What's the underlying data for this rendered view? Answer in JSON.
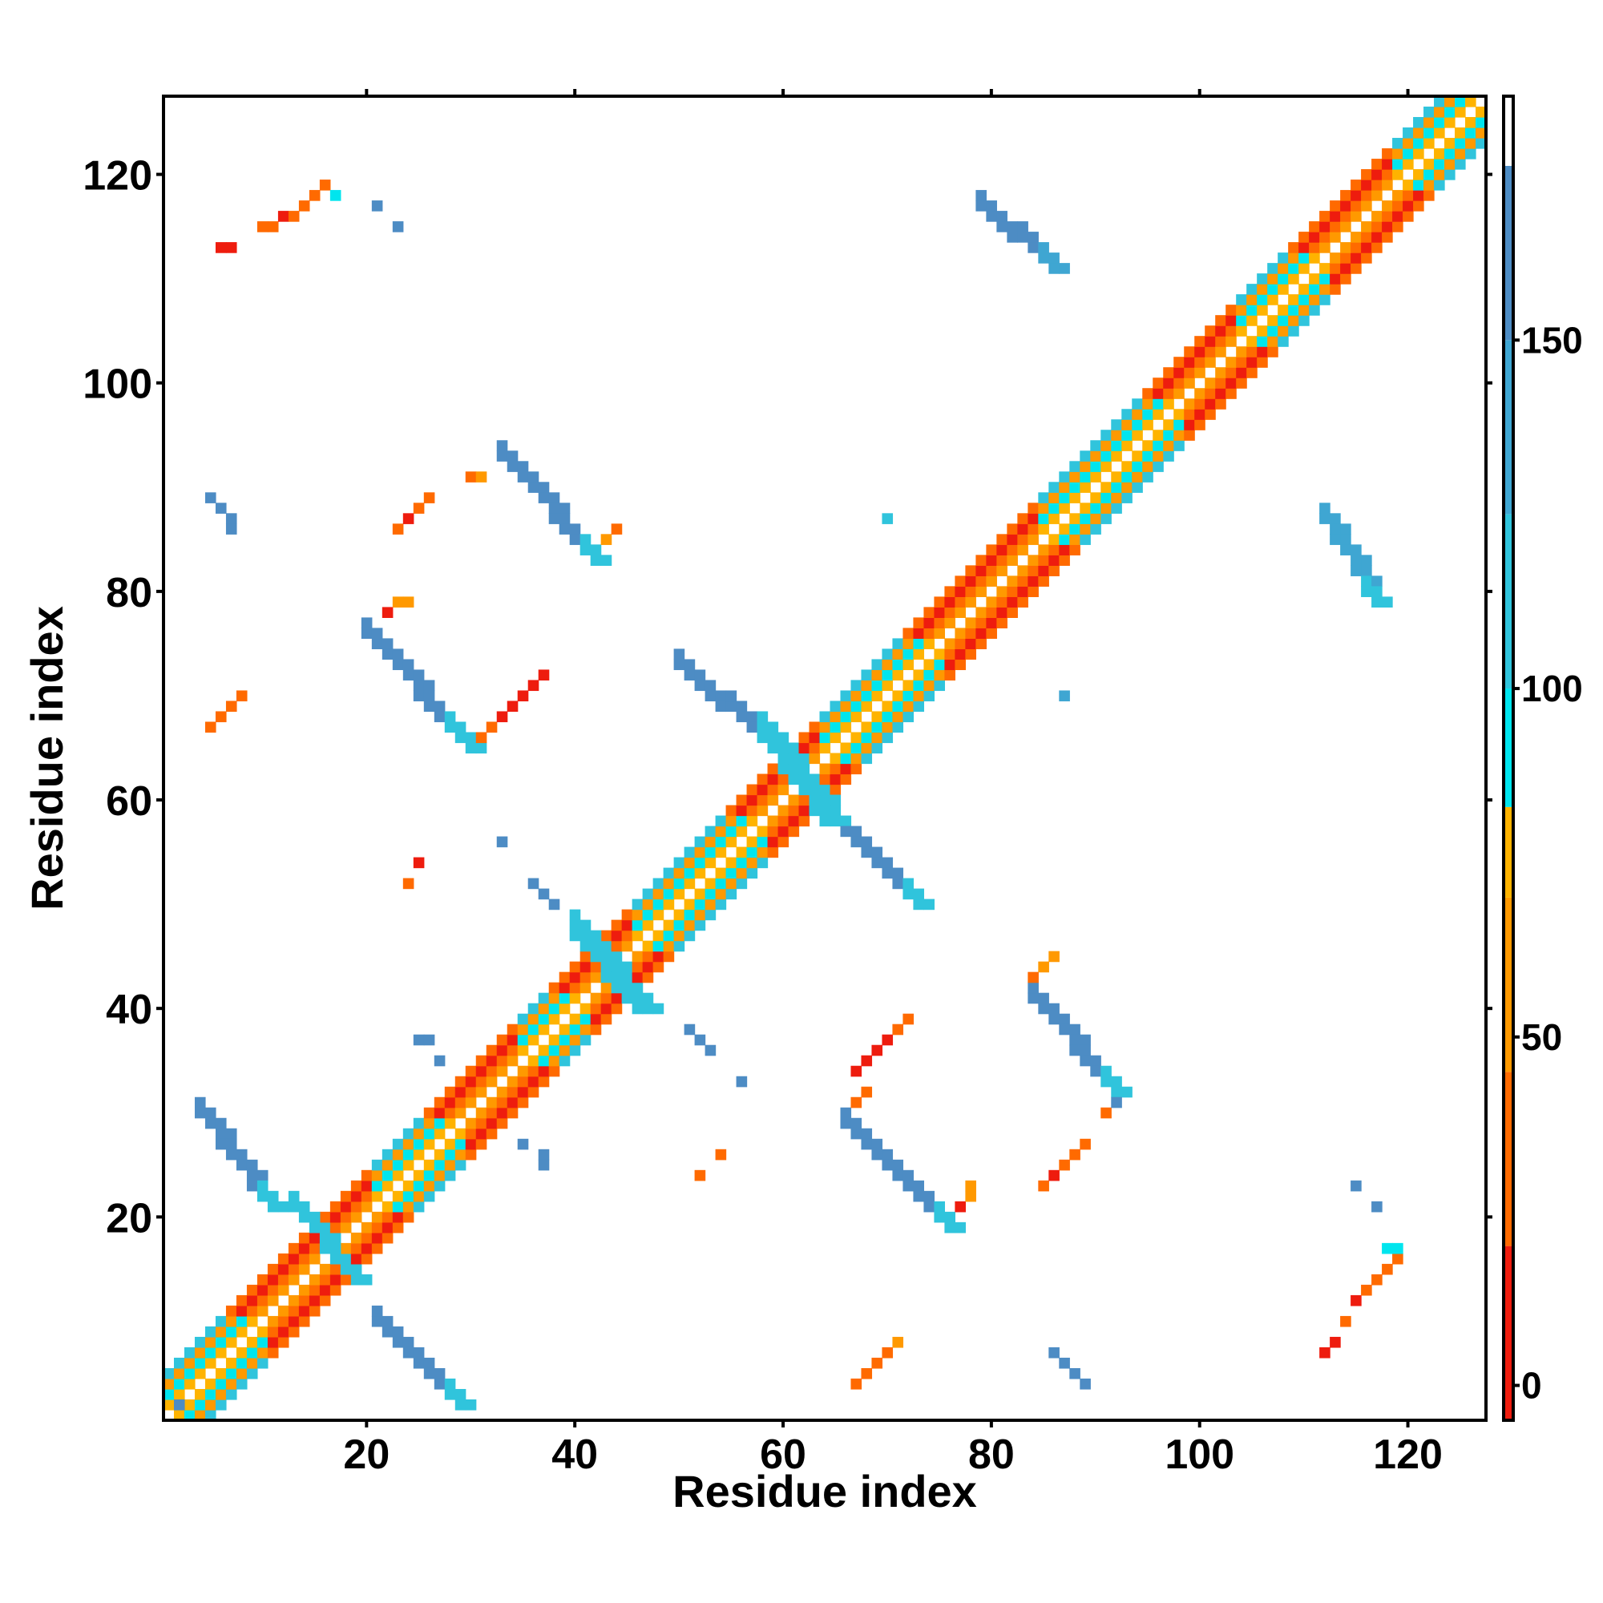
{
  "chart_data": {
    "type": "heatmap",
    "title": "",
    "xlabel": "Residue index",
    "ylabel": "Residue index",
    "xlim": [
      0.5,
      127.5
    ],
    "ylim": [
      0.5,
      127.5
    ],
    "x_ticks": [
      20,
      40,
      60,
      80,
      100,
      120
    ],
    "y_ticks": [
      20,
      40,
      60,
      80,
      100,
      120
    ],
    "grid": false,
    "legend": "none",
    "colorbar": {
      "position": "right",
      "range": [
        -5,
        185
      ],
      "ticks": [
        0,
        50,
        100,
        150
      ],
      "bands": [
        {
          "from": -5,
          "to": 20,
          "color": "#ee1c0e"
        },
        {
          "from": 20,
          "to": 45,
          "color": "#ff6a00"
        },
        {
          "from": 45,
          "to": 70,
          "color": "#ff9900"
        },
        {
          "from": 70,
          "to": 83,
          "color": "#ffb300"
        },
        {
          "from": 83,
          "to": 100,
          "color": "#00e5ee"
        },
        {
          "from": 100,
          "to": 125,
          "color": "#30c4dc"
        },
        {
          "from": 125,
          "to": 150,
          "color": "#3fa6d2"
        },
        {
          "from": 150,
          "to": 175,
          "color": "#4d8cc4"
        },
        {
          "from": 175,
          "to": 185,
          "color": "#ffffff"
        }
      ]
    },
    "diagonal_pattern": {
      "range": [
        1,
        127
      ],
      "offsets": [
        {
          "offset": 1,
          "value": 60
        },
        {
          "offset": 2,
          "value": 30
        },
        {
          "offset": 3,
          "value": 10
        },
        {
          "offset": 4,
          "value": 40
        }
      ],
      "helix_segments": [
        [
          1,
          10
        ],
        [
          21,
          29
        ],
        [
          35,
          41
        ],
        [
          46,
          58
        ],
        [
          64,
          75
        ],
        [
          85,
          98
        ],
        [
          104,
          112
        ],
        [
          119,
          127
        ]
      ],
      "helix_offset_values": [
        {
          "offset": 1,
          "value": 75
        },
        {
          "offset": 2,
          "value": 90
        },
        {
          "offset": 3,
          "value": 55
        },
        {
          "offset": 4,
          "value": 110
        }
      ]
    },
    "contact_bands": [
      {
        "from": [
          21,
          10
        ],
        "to": [
          29,
          2
        ],
        "width": 2,
        "value": 150,
        "end_value": 110
      },
      {
        "from": [
          20,
          76
        ],
        "to": [
          30,
          65
        ],
        "width": 2,
        "value": 150,
        "end_value": 100
      },
      {
        "from": [
          33,
          93
        ],
        "to": [
          42,
          83
        ],
        "width": 2,
        "value": 150,
        "end_value": 100
      },
      {
        "from": [
          50,
          73
        ],
        "to": [
          60,
          64
        ],
        "width": 2,
        "value": 150,
        "end_value": 110
      },
      {
        "from": [
          65,
          58
        ],
        "to": [
          73,
          50
        ],
        "width": 2,
        "value": 150,
        "end_value": 120
      },
      {
        "from": [
          79,
          117
        ],
        "to": [
          86,
          111
        ],
        "width": 2,
        "value": 150,
        "end_value": 130
      },
      {
        "from": [
          84,
          41
        ],
        "to": [
          92,
          32
        ],
        "width": 2,
        "value": 150,
        "end_value": 100
      },
      {
        "from": [
          66,
          29
        ],
        "to": [
          76,
          19
        ],
        "width": 2,
        "value": 150,
        "end_value": 110
      },
      {
        "from": [
          4,
          30
        ],
        "to": [
          11,
          21
        ],
        "width": 2,
        "value": 150,
        "end_value": 120
      },
      {
        "from": [
          112,
          87
        ],
        "to": [
          117,
          79
        ],
        "width": 2,
        "value": 140,
        "end_value": 110
      },
      {
        "from": [
          40,
          47
        ],
        "to": [
          46,
          40
        ],
        "width": 3,
        "value": 110,
        "end_value": 110
      },
      {
        "from": [
          58,
          66
        ],
        "to": [
          64,
          58
        ],
        "width": 3,
        "value": 110,
        "end_value": 110
      },
      {
        "from": [
          13,
          21
        ],
        "to": [
          19,
          14
        ],
        "width": 2,
        "value": 110,
        "end_value": 110
      },
      {
        "from": [
          2,
          2
        ],
        "to": [
          2,
          2
        ],
        "width": 1,
        "value": 150,
        "end_value": 150
      }
    ],
    "contact_cells": [
      {
        "x": 6,
        "y": 113,
        "v": 5
      },
      {
        "x": 7,
        "y": 113,
        "v": 5
      },
      {
        "x": 10,
        "y": 115,
        "v": 40
      },
      {
        "x": 11,
        "y": 115,
        "v": 40
      },
      {
        "x": 12,
        "y": 116,
        "v": 10
      },
      {
        "x": 13,
        "y": 116,
        "v": 25
      },
      {
        "x": 14,
        "y": 117,
        "v": 35
      },
      {
        "x": 15,
        "y": 118,
        "v": 30
      },
      {
        "x": 16,
        "y": 119,
        "v": 40
      },
      {
        "x": 17,
        "y": 118,
        "v": 90
      },
      {
        "x": 21,
        "y": 117,
        "v": 150
      },
      {
        "x": 23,
        "y": 115,
        "v": 150
      },
      {
        "x": 5,
        "y": 67,
        "v": 30
      },
      {
        "x": 6,
        "y": 68,
        "v": 30
      },
      {
        "x": 7,
        "y": 69,
        "v": 35
      },
      {
        "x": 8,
        "y": 70,
        "v": 40
      },
      {
        "x": 5,
        "y": 89,
        "v": 150
      },
      {
        "x": 6,
        "y": 88,
        "v": 150
      },
      {
        "x": 7,
        "y": 87,
        "v": 150
      },
      {
        "x": 7,
        "y": 86,
        "v": 150
      },
      {
        "x": 22,
        "y": 78,
        "v": 5
      },
      {
        "x": 23,
        "y": 79,
        "v": 50
      },
      {
        "x": 24,
        "y": 79,
        "v": 55
      },
      {
        "x": 23,
        "y": 86,
        "v": 35
      },
      {
        "x": 24,
        "y": 87,
        "v": 10
      },
      {
        "x": 25,
        "y": 88,
        "v": 30
      },
      {
        "x": 26,
        "y": 89,
        "v": 40
      },
      {
        "x": 31,
        "y": 66,
        "v": 35
      },
      {
        "x": 32,
        "y": 67,
        "v": 20
      },
      {
        "x": 33,
        "y": 68,
        "v": 10
      },
      {
        "x": 34,
        "y": 69,
        "v": 5
      },
      {
        "x": 35,
        "y": 70,
        "v": 10
      },
      {
        "x": 36,
        "y": 71,
        "v": 5
      },
      {
        "x": 37,
        "y": 72,
        "v": 10
      },
      {
        "x": 30,
        "y": 91,
        "v": 40
      },
      {
        "x": 31,
        "y": 91,
        "v": 50
      },
      {
        "x": 43,
        "y": 85,
        "v": 50
      },
      {
        "x": 44,
        "y": 86,
        "v": 40
      },
      {
        "x": 24,
        "y": 52,
        "v": 30
      },
      {
        "x": 25,
        "y": 54,
        "v": 5
      },
      {
        "x": 33,
        "y": 56,
        "v": 150
      },
      {
        "x": 36,
        "y": 52,
        "v": 150
      },
      {
        "x": 37,
        "y": 51,
        "v": 150
      },
      {
        "x": 38,
        "y": 50,
        "v": 150
      },
      {
        "x": 25,
        "y": 37,
        "v": 150
      },
      {
        "x": 26,
        "y": 37,
        "v": 150
      },
      {
        "x": 27,
        "y": 35,
        "v": 150
      },
      {
        "x": 51,
        "y": 38,
        "v": 150
      },
      {
        "x": 52,
        "y": 37,
        "v": 150
      },
      {
        "x": 53,
        "y": 36,
        "v": 150
      },
      {
        "x": 56,
        "y": 33,
        "v": 150
      },
      {
        "x": 35,
        "y": 27,
        "v": 150
      },
      {
        "x": 37,
        "y": 26,
        "v": 150
      },
      {
        "x": 37,
        "y": 25,
        "v": 150
      },
      {
        "x": 52,
        "y": 24,
        "v": 40
      },
      {
        "x": 54,
        "y": 26,
        "v": 20
      },
      {
        "x": 67,
        "y": 31,
        "v": 40
      },
      {
        "x": 68,
        "y": 32,
        "v": 30
      },
      {
        "x": 67,
        "y": 34,
        "v": 10
      },
      {
        "x": 68,
        "y": 35,
        "v": 10
      },
      {
        "x": 69,
        "y": 36,
        "v": 5
      },
      {
        "x": 70,
        "y": 37,
        "v": 10
      },
      {
        "x": 71,
        "y": 38,
        "v": 30
      },
      {
        "x": 72,
        "y": 39,
        "v": 40
      },
      {
        "x": 77,
        "y": 21,
        "v": 5
      },
      {
        "x": 78,
        "y": 22,
        "v": 50
      },
      {
        "x": 78,
        "y": 23,
        "v": 60
      },
      {
        "x": 85,
        "y": 23,
        "v": 40
      },
      {
        "x": 86,
        "y": 24,
        "v": 10
      },
      {
        "x": 87,
        "y": 25,
        "v": 20
      },
      {
        "x": 88,
        "y": 26,
        "v": 30
      },
      {
        "x": 89,
        "y": 27,
        "v": 40
      },
      {
        "x": 84,
        "y": 43,
        "v": 40
      },
      {
        "x": 85,
        "y": 44,
        "v": 50
      },
      {
        "x": 86,
        "y": 45,
        "v": 60
      },
      {
        "x": 91,
        "y": 30,
        "v": 40
      },
      {
        "x": 92,
        "y": 31,
        "v": 150
      },
      {
        "x": 67,
        "y": 4,
        "v": 40
      },
      {
        "x": 68,
        "y": 5,
        "v": 30
      },
      {
        "x": 69,
        "y": 6,
        "v": 35
      },
      {
        "x": 70,
        "y": 7,
        "v": 30
      },
      {
        "x": 71,
        "y": 8,
        "v": 45
      },
      {
        "x": 86,
        "y": 7,
        "v": 150
      },
      {
        "x": 87,
        "y": 6,
        "v": 150
      },
      {
        "x": 88,
        "y": 5,
        "v": 150
      },
      {
        "x": 89,
        "y": 4,
        "v": 150
      },
      {
        "x": 112,
        "y": 7,
        "v": 5
      },
      {
        "x": 113,
        "y": 8,
        "v": 10
      },
      {
        "x": 114,
        "y": 10,
        "v": 30
      },
      {
        "x": 115,
        "y": 12,
        "v": 5
      },
      {
        "x": 116,
        "y": 13,
        "v": 20
      },
      {
        "x": 117,
        "y": 14,
        "v": 30
      },
      {
        "x": 118,
        "y": 15,
        "v": 35
      },
      {
        "x": 119,
        "y": 16,
        "v": 40
      },
      {
        "x": 118,
        "y": 17,
        "v": 90
      },
      {
        "x": 119,
        "y": 17,
        "v": 90
      },
      {
        "x": 115,
        "y": 23,
        "v": 150
      },
      {
        "x": 117,
        "y": 21,
        "v": 150
      },
      {
        "x": 70,
        "y": 87,
        "v": 110
      },
      {
        "x": 87,
        "y": 70,
        "v": 140
      }
    ]
  }
}
